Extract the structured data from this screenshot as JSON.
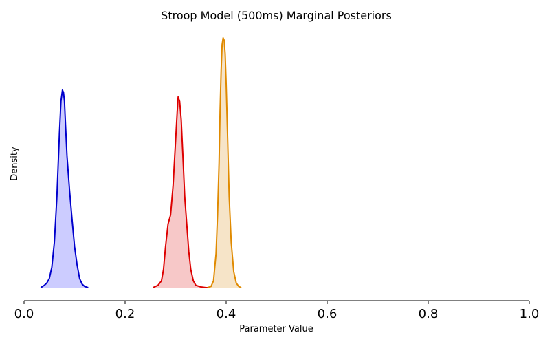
{
  "chart_data": {
    "type": "area",
    "title": "Stroop Model (500ms) Marginal Posteriors",
    "xlabel": "Parameter Value",
    "ylabel": "Density",
    "xlim": [
      0.0,
      1.0
    ],
    "xticks": [
      "0.0",
      "0.2",
      "0.4",
      "0.6",
      "0.8",
      "1.0"
    ],
    "xtick_values": [
      0.0,
      0.2,
      0.4,
      0.6,
      0.8,
      1.0
    ],
    "y_ticks_shown": false,
    "grid": false,
    "legend": "none",
    "series": [
      {
        "color": "#0000cc",
        "fill": "#ccccff",
        "x": [
          0.033,
          0.04,
          0.045,
          0.05,
          0.055,
          0.06,
          0.065,
          0.07,
          0.073,
          0.076,
          0.078,
          0.08,
          0.082,
          0.085,
          0.09,
          0.095,
          0.1,
          0.105,
          0.11,
          0.115,
          0.12,
          0.127
        ],
        "y": [
          0.0,
          0.01,
          0.02,
          0.04,
          0.09,
          0.2,
          0.4,
          0.68,
          0.82,
          0.87,
          0.86,
          0.82,
          0.72,
          0.58,
          0.43,
          0.3,
          0.18,
          0.1,
          0.04,
          0.015,
          0.005,
          0.0
        ]
      },
      {
        "color": "#dd0000",
        "fill": "#f7c8c8",
        "x": [
          0.255,
          0.265,
          0.272,
          0.276,
          0.28,
          0.285,
          0.29,
          0.295,
          0.3,
          0.303,
          0.305,
          0.308,
          0.311,
          0.315,
          0.318,
          0.322,
          0.326,
          0.33,
          0.335,
          0.34,
          0.35,
          0.36,
          0.365
        ],
        "y": [
          0.0,
          0.01,
          0.03,
          0.08,
          0.18,
          0.28,
          0.32,
          0.45,
          0.65,
          0.77,
          0.84,
          0.82,
          0.74,
          0.55,
          0.4,
          0.28,
          0.16,
          0.08,
          0.03,
          0.01,
          0.003,
          0.0,
          0.0
        ]
      },
      {
        "color": "#e08a00",
        "fill": "#f6e4c8",
        "x": [
          0.363,
          0.37,
          0.375,
          0.38,
          0.383,
          0.386,
          0.388,
          0.39,
          0.392,
          0.394,
          0.396,
          0.398,
          0.4,
          0.403,
          0.406,
          0.41,
          0.415,
          0.42,
          0.425,
          0.43
        ],
        "y": [
          0.0,
          0.005,
          0.03,
          0.15,
          0.32,
          0.55,
          0.78,
          0.95,
          1.07,
          1.1,
          1.09,
          1.03,
          0.9,
          0.65,
          0.4,
          0.2,
          0.07,
          0.02,
          0.005,
          0.0
        ]
      }
    ]
  }
}
